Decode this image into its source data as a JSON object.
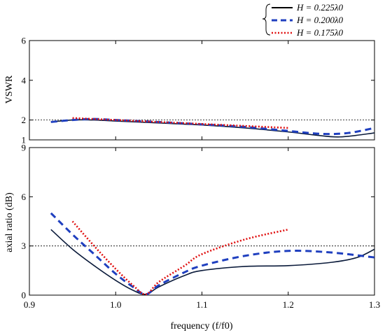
{
  "chart_data": {
    "type": "line",
    "xlabel": "frequency (f/f0)",
    "xlim": [
      0.9,
      1.3
    ],
    "xticks": [
      "0.9",
      "1.0",
      "1.1",
      "1.2",
      "1.3"
    ],
    "legend": {
      "placement": "top-right",
      "entries": [
        {
          "label": "H = 0.225λ0",
          "color": "#000000",
          "dash": "solid"
        },
        {
          "label": "H = 0.200λ0",
          "color": "#1f3fbf",
          "dash": "dashed"
        },
        {
          "label": "H = 0.175λ0",
          "color": "#e01010",
          "dash": "dotted"
        }
      ]
    },
    "panels": [
      {
        "ylabel": "VSWR",
        "ylim": [
          1,
          6
        ],
        "yticks": [
          "1",
          "2",
          "4",
          "6"
        ],
        "reference_line": 2,
        "series": [
          {
            "name": "H = 0.225λ0",
            "color": "#0a1a3a",
            "dash": "solid",
            "x": [
              0.925,
              0.95,
              0.975,
              1.0,
              1.05,
              1.1,
              1.15,
              1.2,
              1.23,
              1.26,
              1.3
            ],
            "y": [
              1.9,
              2.0,
              2.0,
              1.95,
              1.85,
              1.75,
              1.6,
              1.4,
              1.25,
              1.15,
              1.35
            ]
          },
          {
            "name": "H = 0.200λ0",
            "color": "#1f3fbf",
            "dash": "dashed",
            "x": [
              0.925,
              0.95,
              0.975,
              1.0,
              1.05,
              1.1,
              1.15,
              1.2,
              1.24,
              1.27,
              1.3
            ],
            "y": [
              1.9,
              2.0,
              2.05,
              2.0,
              1.9,
              1.78,
              1.65,
              1.45,
              1.3,
              1.35,
              1.6
            ]
          },
          {
            "name": "H = 0.175λ0",
            "color": "#e01010",
            "dash": "dotted",
            "x": [
              0.95,
              0.975,
              1.0,
              1.05,
              1.1,
              1.15,
              1.2
            ],
            "y": [
              2.1,
              2.05,
              2.0,
              1.9,
              1.8,
              1.7,
              1.6
            ]
          }
        ]
      },
      {
        "ylabel": "axial ratio (dB)",
        "ylim": [
          0,
          9
        ],
        "yticks": [
          "0",
          "3",
          "6",
          "9"
        ],
        "reference_line": 3,
        "series": [
          {
            "name": "H = 0.225λ0",
            "color": "#0a1a3a",
            "dash": "solid",
            "x": [
              0.925,
              0.95,
              0.975,
              1.0,
              1.02,
              1.035,
              1.05,
              1.08,
              1.1,
              1.15,
              1.2,
              1.25,
              1.28,
              1.3
            ],
            "y": [
              4.0,
              2.8,
              1.8,
              0.9,
              0.3,
              0.05,
              0.5,
              1.2,
              1.5,
              1.75,
              1.8,
              2.0,
              2.3,
              2.8
            ]
          },
          {
            "name": "H = 0.200λ0",
            "color": "#1f3fbf",
            "dash": "dashed",
            "x": [
              0.925,
              0.95,
              0.975,
              1.0,
              1.02,
              1.035,
              1.05,
              1.08,
              1.1,
              1.15,
              1.2,
              1.25,
              1.3
            ],
            "y": [
              5.0,
              3.7,
              2.5,
              1.3,
              0.5,
              0.05,
              0.6,
              1.4,
              1.8,
              2.4,
              2.7,
              2.6,
              2.3
            ]
          },
          {
            "name": "H = 0.175λ0",
            "color": "#e01010",
            "dash": "dotted",
            "x": [
              0.95,
              0.975,
              1.0,
              1.02,
              1.035,
              1.05,
              1.08,
              1.1,
              1.15,
              1.2
            ],
            "y": [
              4.5,
              3.0,
              1.6,
              0.6,
              0.05,
              0.8,
              1.8,
              2.5,
              3.4,
              4.0
            ]
          }
        ]
      }
    ]
  }
}
